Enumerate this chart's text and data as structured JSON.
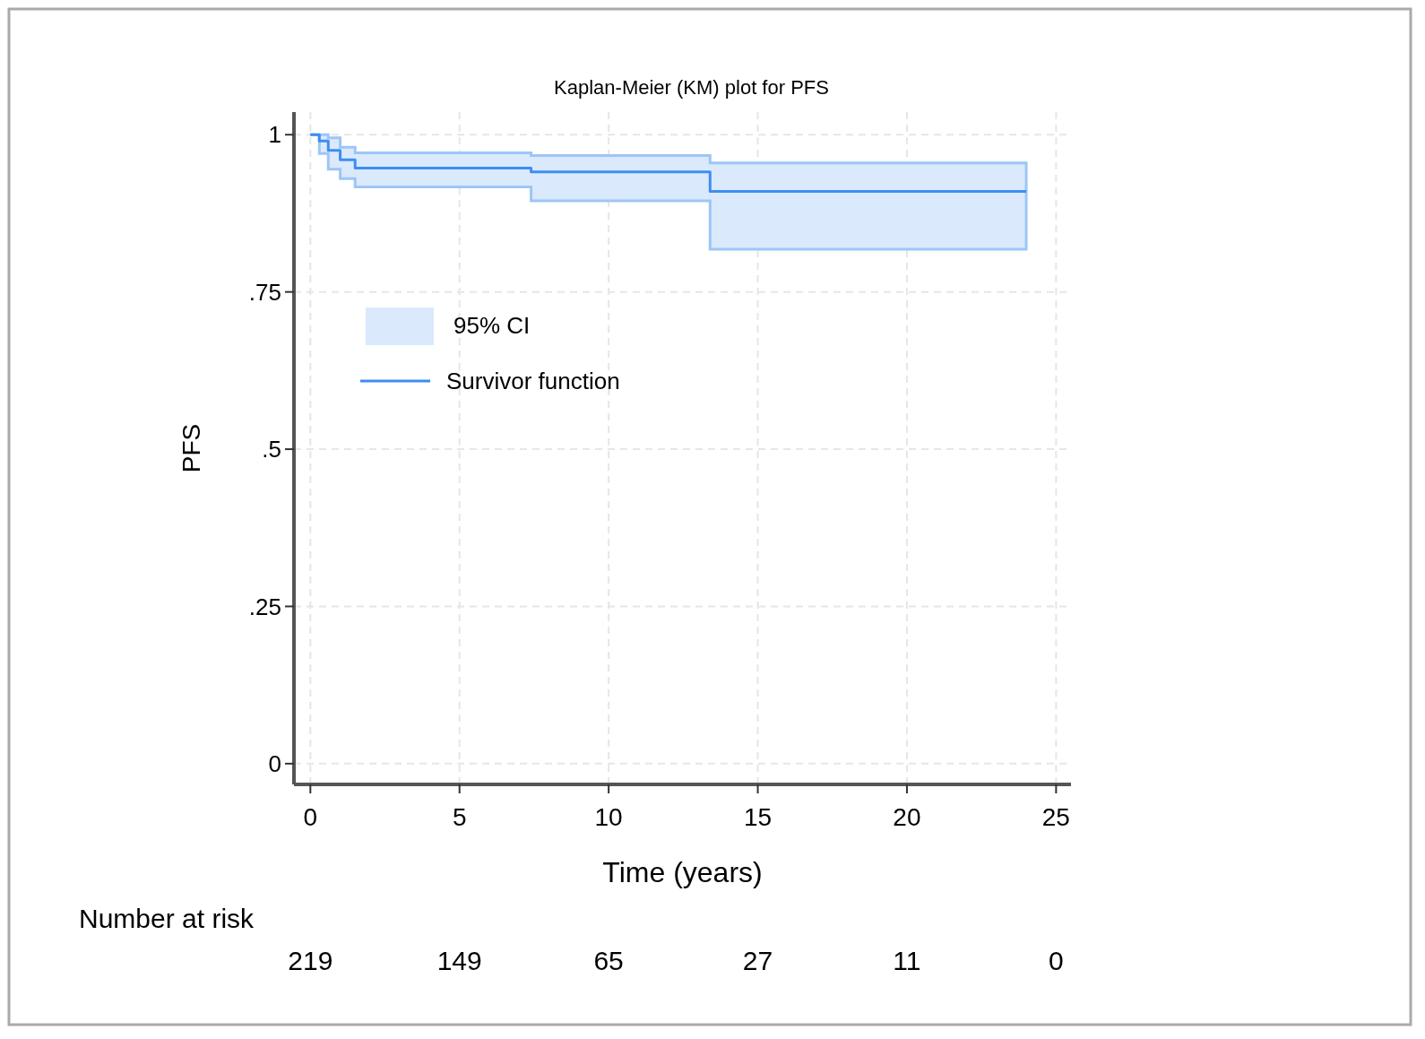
{
  "chart_data": {
    "type": "step",
    "title": "Kaplan-Meier (KM) plot for PFS",
    "xlabel": "Time (years)",
    "ylabel": "PFS",
    "x": [
      0,
      0.3,
      0.6,
      1.0,
      1.5,
      7.4,
      13.4,
      24
    ],
    "series": [
      {
        "name": "Survivor function",
        "color": "#3d8ef0",
        "values": [
          1,
          0.99,
          0.975,
          0.96,
          0.947,
          0.941,
          0.91,
          0.91
        ],
        "lower": [
          1,
          0.97,
          0.945,
          0.93,
          0.917,
          0.895,
          0.818,
          0.818
        ],
        "upper": [
          1,
          1,
          0.995,
          0.98,
          0.971,
          0.967,
          0.955,
          0.955
        ]
      }
    ],
    "xlim": [
      -0.55,
      25.5
    ],
    "xticks": [
      0,
      5,
      10,
      15,
      20,
      25
    ],
    "ylim": [
      -0.033,
      1.036
    ],
    "yticks": [
      0,
      {
        "value": 0.25,
        "label": ".25"
      },
      {
        "value": 0.5,
        "label": ".5"
      },
      {
        "value": 0.75,
        "label": ".75"
      },
      1
    ],
    "grid": true,
    "legend": "top left",
    "annotations": [
      "95% CI",
      "Number at risk",
      "219",
      "149",
      "65",
      "27",
      "11",
      "0"
    ]
  }
}
